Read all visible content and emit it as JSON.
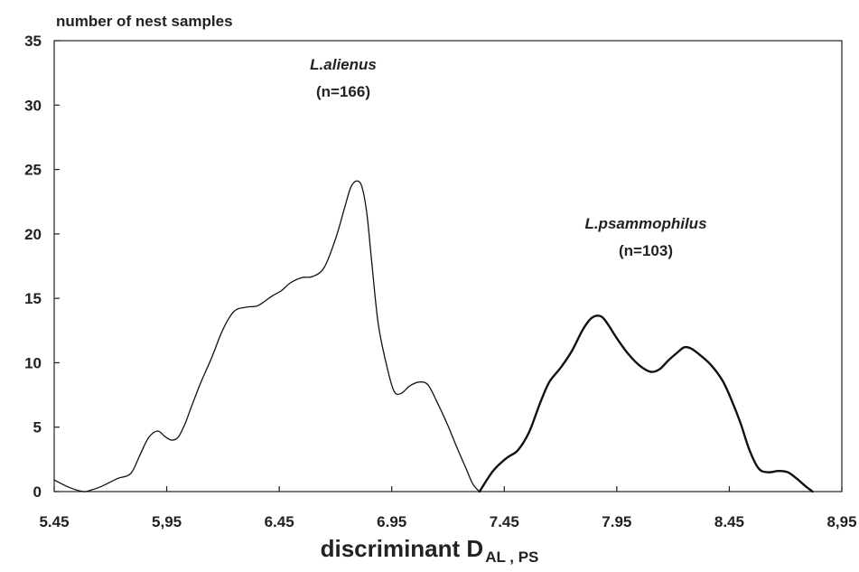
{
  "chart_data": {
    "type": "line",
    "title": "",
    "ylabel": "number of nest samples",
    "xlabel": "discriminant D",
    "xlabel_subscript": "AL , PS",
    "xlim": [
      5.45,
      8.95
    ],
    "ylim": [
      0,
      35
    ],
    "x_ticks": [
      "5.45",
      "5,95",
      "6.45",
      "6.95",
      "7.45",
      "7.95",
      "8.45",
      "8,95"
    ],
    "y_ticks": [
      "0",
      "5",
      "10",
      "15",
      "20",
      "25",
      "30",
      "35"
    ],
    "grid": false,
    "series": [
      {
        "name": "L.alienus",
        "n_label": "(n=166)",
        "x": [
          5.45,
          5.52,
          5.58,
          5.61,
          5.66,
          5.73,
          5.79,
          5.83,
          5.87,
          5.91,
          5.94,
          5.97,
          6.0,
          6.03,
          6.06,
          6.1,
          6.15,
          6.2,
          6.25,
          6.3,
          6.35,
          6.38,
          6.42,
          6.46,
          6.5,
          6.55,
          6.6,
          6.65,
          6.7,
          6.74,
          6.77,
          6.8,
          6.82,
          6.84,
          6.86,
          6.89,
          6.93,
          6.96,
          6.99,
          7.03,
          7.07,
          7.11,
          7.15,
          7.2,
          7.24,
          7.28,
          7.31,
          7.34
        ],
        "y": [
          0.9,
          0.3,
          0.0,
          0.1,
          0.4,
          1.0,
          1.4,
          2.8,
          4.2,
          4.7,
          4.3,
          4.0,
          4.2,
          5.2,
          6.6,
          8.4,
          10.4,
          12.6,
          14.0,
          14.3,
          14.4,
          14.7,
          15.2,
          15.6,
          16.2,
          16.6,
          16.7,
          17.4,
          19.6,
          22.0,
          23.7,
          24.1,
          23.5,
          21.5,
          18.0,
          13.0,
          9.6,
          7.8,
          7.6,
          8.2,
          8.5,
          8.3,
          7.0,
          5.1,
          3.4,
          1.8,
          0.6,
          0.0
        ]
      },
      {
        "name": "L.psammophilus",
        "n_label": "(n=103)",
        "x": [
          7.34,
          7.4,
          7.46,
          7.51,
          7.56,
          7.61,
          7.65,
          7.7,
          7.75,
          7.8,
          7.84,
          7.88,
          7.91,
          7.95,
          8.0,
          8.05,
          8.1,
          8.14,
          8.18,
          8.22,
          8.25,
          8.28,
          8.32,
          8.37,
          8.42,
          8.46,
          8.5,
          8.54,
          8.58,
          8.62,
          8.67,
          8.71,
          8.75,
          8.79,
          8.82
        ],
        "y": [
          0.0,
          1.6,
          2.6,
          3.2,
          4.6,
          6.9,
          8.5,
          9.6,
          10.9,
          12.6,
          13.5,
          13.6,
          13.0,
          11.9,
          10.7,
          9.8,
          9.3,
          9.5,
          10.2,
          10.8,
          11.2,
          11.1,
          10.6,
          9.8,
          8.6,
          7.1,
          5.3,
          3.2,
          1.8,
          1.5,
          1.6,
          1.5,
          1.0,
          0.4,
          0.0
        ]
      }
    ]
  }
}
